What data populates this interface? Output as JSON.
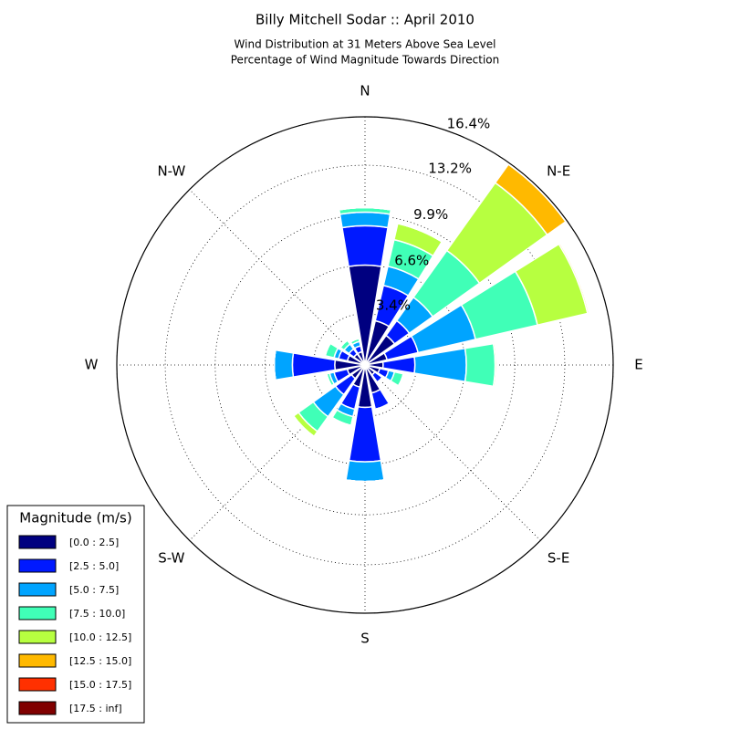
{
  "chart_data": {
    "type": "windrose",
    "title": "Billy Mitchell Sodar :: April 2010",
    "subtitle": [
      "Wind Distribution at 31 Meters Above Sea Level",
      "Percentage of Wind Magnitude Towards Direction"
    ],
    "categories": [
      "N",
      null,
      "N-E",
      null,
      "E",
      null,
      "S-E",
      null,
      "S",
      null,
      "S-W",
      null,
      "W",
      null,
      "N-W",
      null
    ],
    "rlim": [
      0,
      16.4
    ],
    "rticks": [
      {
        "value": 3.4,
        "label": "3.4%"
      },
      {
        "value": 6.6,
        "label": "6.6%"
      },
      {
        "value": 9.9,
        "label": "9.9%"
      },
      {
        "value": 13.2,
        "label": "13.2%"
      },
      {
        "value": 16.4,
        "label": "16.4%"
      }
    ],
    "grid": true,
    "legend_title": "Magnitude (m/s)",
    "legend": "lower left",
    "series": [
      {
        "name": "[0.0 : 2.5]",
        "color": "#000080",
        "values": [
          6.6,
          3.0,
          2.4,
          1.5,
          1.2,
          1.0,
          0.8,
          1.9,
          2.8,
          1.5,
          1.1,
          1.2,
          2.0,
          1.2,
          0.9,
          0.9
        ]
      },
      {
        "name": "[2.5 : 5.0]",
        "color": "#0019ff",
        "values": [
          2.6,
          2.4,
          1.2,
          2.1,
          2.1,
          0.6,
          0.6,
          1.1,
          3.6,
          1.5,
          1.3,
          0.9,
          2.8,
          0.6,
          0.4,
          0.4
        ]
      },
      {
        "name": "[5.0 : 7.5]",
        "color": "#00a4ff",
        "values": [
          0.9,
          1.3,
          1.9,
          3.9,
          3.4,
          0.4,
          0,
          0,
          1.3,
          0.5,
          1.8,
          0.3,
          1.2,
          0.3,
          0.4,
          0.3
        ]
      },
      {
        "name": "[7.5 : 10.0]",
        "color": "#40ffb7",
        "values": [
          0.3,
          1.8,
          3.8,
          4.2,
          1.9,
          0.6,
          0,
          0,
          0,
          0.6,
          1.2,
          0.2,
          0,
          0.6,
          0.3,
          0.2
        ]
      },
      {
        "name": "[10.0 : 12.5]",
        "color": "#b7ff40",
        "values": [
          0,
          1.1,
          5.5,
          3.4,
          0.1,
          0,
          0,
          0,
          0,
          0,
          0.4,
          0,
          0,
          0,
          0,
          0
        ]
      },
      {
        "name": "[12.5 : 15.0]",
        "color": "#ffb900",
        "values": [
          0,
          0,
          1.5,
          0.1,
          0,
          0,
          0,
          0,
          0,
          0,
          0,
          0,
          0,
          0,
          0,
          0
        ]
      },
      {
        "name": "[15.0 : 17.5]",
        "color": "#ff3000",
        "values": [
          0,
          0,
          0,
          0,
          0,
          0,
          0,
          0,
          0,
          0,
          0,
          0,
          0,
          0,
          0,
          0
        ]
      },
      {
        "name": "[17.5 : inf]",
        "color": "#800000",
        "values": [
          0,
          0,
          0,
          0,
          0,
          0,
          0,
          0,
          0,
          0,
          0,
          0,
          0,
          0,
          0,
          0
        ]
      }
    ]
  }
}
